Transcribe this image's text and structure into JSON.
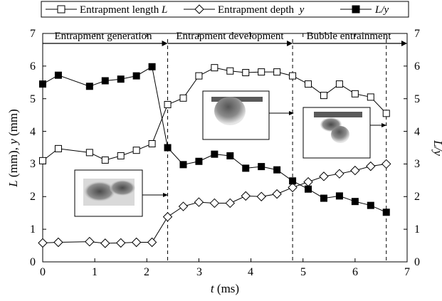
{
  "chart_data": {
    "type": "line",
    "xlabel_italic": "t",
    "xlabel_rest": " (ms)",
    "ylabel_left": "L (mm), y (mm)",
    "ylabel_right": "L/y",
    "xlim": [
      0,
      7
    ],
    "ylim_left": [
      0,
      7
    ],
    "ylim_right": [
      0,
      7
    ],
    "x_ticks": [
      "0",
      "1",
      "2",
      "3",
      "4",
      "5",
      "6",
      "7"
    ],
    "y_ticks": [
      "0",
      "1",
      "2",
      "3",
      "4",
      "5",
      "6",
      "7"
    ],
    "legend": {
      "placement": "top",
      "entries": [
        {
          "text": "Entrapment length ",
          "var": "L"
        },
        {
          "text": "Entrapment depth  ",
          "var": "y"
        },
        {
          "text": "",
          "var": "L/y"
        }
      ]
    },
    "phases": [
      {
        "label": "Entrapment generation"
      },
      {
        "label": "Entrapment development"
      },
      {
        "label": "Bubble entrainment"
      }
    ],
    "phase_boundaries": [
      2.4,
      4.8,
      6.6
    ],
    "series": [
      {
        "name": "Entrapment length L",
        "marker": "open-square",
        "x": [
          0,
          0.3,
          0.9,
          1.2,
          1.5,
          1.8,
          2.1,
          2.4,
          2.7,
          3.0,
          3.3,
          3.6,
          3.9,
          4.2,
          4.5,
          4.8,
          5.1,
          5.4,
          5.7,
          6.0,
          6.3,
          6.6
        ],
        "y": [
          3.1,
          3.47,
          3.35,
          3.12,
          3.25,
          3.42,
          3.62,
          4.82,
          5.02,
          5.7,
          5.95,
          5.85,
          5.8,
          5.82,
          5.82,
          5.7,
          5.45,
          5.1,
          5.45,
          5.15,
          5.05,
          4.55
        ]
      },
      {
        "name": "Entrapment depth y",
        "marker": "open-diamond",
        "x": [
          0,
          0.3,
          0.9,
          1.2,
          1.5,
          1.8,
          2.1,
          2.4,
          2.7,
          3.0,
          3.3,
          3.6,
          3.9,
          4.2,
          4.5,
          4.8,
          5.1,
          5.4,
          5.7,
          6.0,
          6.3,
          6.6
        ],
        "y": [
          0.58,
          0.6,
          0.62,
          0.57,
          0.58,
          0.6,
          0.6,
          1.38,
          1.7,
          1.83,
          1.8,
          1.8,
          2.02,
          2.0,
          2.08,
          2.28,
          2.45,
          2.62,
          2.7,
          2.8,
          2.93,
          3.0
        ]
      },
      {
        "name": "L/y",
        "marker": "filled-square",
        "axis": "right",
        "x": [
          0,
          0.3,
          0.9,
          1.2,
          1.5,
          1.8,
          2.1,
          2.4,
          2.7,
          3.0,
          3.3,
          3.6,
          3.9,
          4.2,
          4.5,
          4.8,
          5.1,
          5.4,
          5.7,
          6.0,
          6.3,
          6.6
        ],
        "y": [
          5.45,
          5.72,
          5.38,
          5.55,
          5.6,
          5.7,
          5.98,
          3.5,
          2.98,
          3.08,
          3.3,
          3.25,
          2.87,
          2.92,
          2.82,
          2.48,
          2.23,
          1.95,
          2.02,
          1.85,
          1.73,
          1.52
        ]
      }
    ]
  }
}
